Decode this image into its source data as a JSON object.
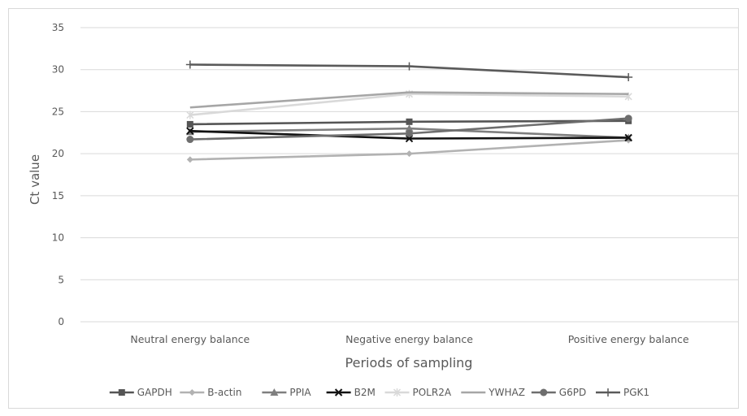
{
  "chart_data": {
    "type": "line",
    "title": "",
    "xlabel": "Periods of sampling",
    "ylabel": "Ct value",
    "categories": [
      "Neutral energy balance",
      "Negative energy balance",
      "Positive energy balance"
    ],
    "ylim": [
      0,
      35
    ],
    "yticks": [
      0,
      5,
      10,
      15,
      20,
      25,
      30,
      35
    ],
    "grid": true,
    "legend_position": "bottom",
    "series": [
      {
        "name": "GAPDH",
        "values": [
          23.5,
          23.8,
          23.9
        ],
        "color": "#555555",
        "marker": "square"
      },
      {
        "name": "B-actin",
        "values": [
          19.3,
          20.0,
          21.6
        ],
        "color": "#b2b2b2",
        "marker": "diamond"
      },
      {
        "name": "PPIA",
        "values": [
          22.6,
          23.0,
          21.9
        ],
        "color": "#7f7f7f",
        "marker": "triangle"
      },
      {
        "name": "B2M",
        "values": [
          22.7,
          21.8,
          21.9
        ],
        "color": "#111111",
        "marker": "x"
      },
      {
        "name": "POLR2A",
        "values": [
          24.6,
          27.1,
          26.8
        ],
        "color": "#d9d9d9",
        "marker": "star"
      },
      {
        "name": "YWHAZ",
        "values": [
          25.5,
          27.3,
          27.1
        ],
        "color": "#a6a6a6",
        "marker": "none"
      },
      {
        "name": "G6PD",
        "values": [
          21.7,
          22.4,
          24.2
        ],
        "color": "#6e6e6e",
        "marker": "circle"
      },
      {
        "name": "PGK1",
        "values": [
          30.6,
          30.4,
          29.1
        ],
        "color": "#5a5a5a",
        "marker": "plus"
      }
    ]
  }
}
